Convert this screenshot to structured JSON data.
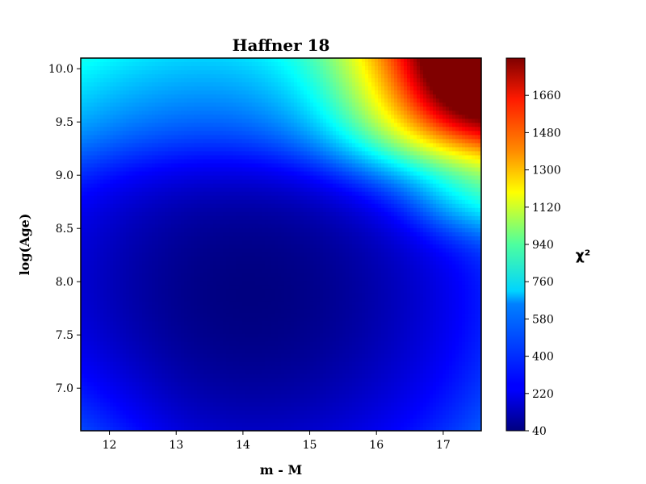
{
  "chart_data": {
    "type": "heatmap",
    "title": "Haffner 18",
    "xlabel": "m - M",
    "ylabel": "log(Age)",
    "xlim": [
      11.57,
      17.57
    ],
    "ylim": [
      6.6,
      10.1
    ],
    "xticks": [
      12,
      13,
      14,
      15,
      16,
      17
    ],
    "yticks": [
      7.0,
      7.5,
      8.0,
      8.5,
      9.0,
      9.5,
      10.0
    ],
    "xtick_labels": [
      "12",
      "13",
      "14",
      "15",
      "16",
      "17"
    ],
    "ytick_labels": [
      "7.0",
      "7.5",
      "8.0",
      "8.5",
      "9.0",
      "9.5",
      "10.0"
    ],
    "colormap": "jet",
    "colorbar": {
      "label": "χ²",
      "range": [
        40,
        1840
      ],
      "ticks": [
        40,
        220,
        400,
        580,
        760,
        940,
        1120,
        1300,
        1480,
        1660
      ],
      "tick_labels": [
        "40",
        "220",
        "400",
        "580",
        "760",
        "940",
        "1120",
        "1300",
        "1480",
        "1660"
      ]
    },
    "surface": {
      "description_min": {
        "x": 14.1,
        "y": 7.9,
        "value": 40
      },
      "description_max": {
        "x": 17.57,
        "y": 10.1,
        "value": 1840
      }
    }
  }
}
